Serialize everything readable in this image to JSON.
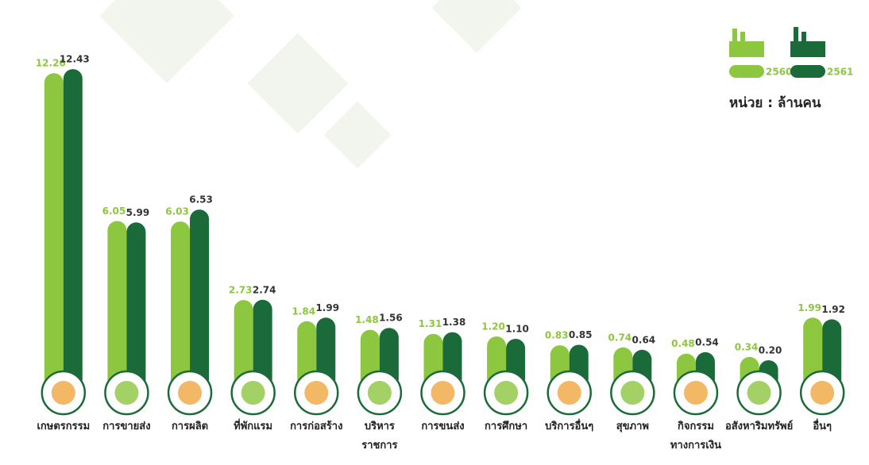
{
  "chart_data": {
    "type": "bar",
    "unit": "หน่วย : ล้านคน",
    "categories": [
      "เกษตรกรรม",
      "การขายส่ง",
      "การผลิต",
      "ที่พักแรม",
      "การก่อสร้าง",
      "บริหาร\nราชการ",
      "การขนส่ง",
      "การศึกษา",
      "บริการอื่นๆ",
      "สุขภาพ",
      "กิจกรรม\nทางการเงิน",
      "อสังหาริมทรัพย์",
      "อื่นๆ"
    ],
    "series": [
      {
        "name": "2560",
        "color": "#8dc63f",
        "values": [
          12.26,
          6.05,
          6.03,
          2.73,
          1.84,
          1.48,
          1.31,
          1.2,
          0.83,
          0.74,
          0.48,
          0.34,
          1.99
        ],
        "value_labels": [
          "12.26",
          "6.05",
          "6.03",
          "2.73",
          "1.84",
          "1.48",
          "1.31",
          "1.20",
          "0.83",
          "0.74",
          "0.48",
          "0.34",
          "1.99"
        ]
      },
      {
        "name": "2561",
        "color": "#1b6b3a",
        "values": [
          12.43,
          5.99,
          6.53,
          2.74,
          1.99,
          1.56,
          1.38,
          1.1,
          0.85,
          0.64,
          0.54,
          0.2,
          1.92
        ],
        "value_labels": [
          "12.43",
          "5.99",
          "6.53",
          "2.74",
          "1.99",
          "1.56",
          "1.38",
          "1.10",
          "0.85",
          "0.64",
          "0.54",
          "0.20",
          "1.92"
        ]
      }
    ]
  }
}
